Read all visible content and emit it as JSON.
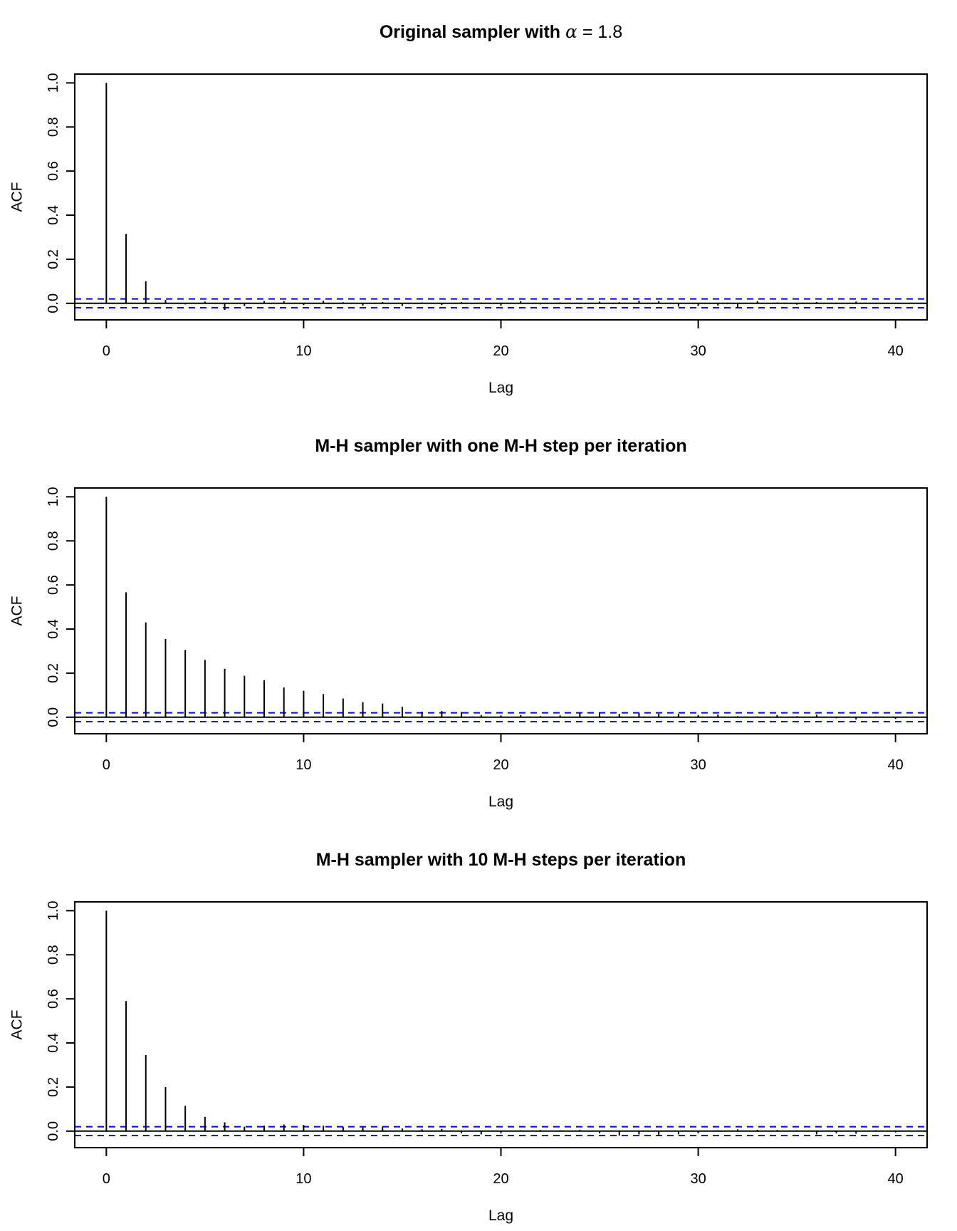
{
  "chart_data": [
    {
      "type": "bar",
      "title": {
        "bold": "Original sampler with ",
        "symbol": "α",
        "rest": " = 1.8"
      },
      "xlabel": "Lag",
      "ylabel": "ACF",
      "xlim": [
        -1.6,
        41.6
      ],
      "ylim": [
        -0.075,
        1.04
      ],
      "xticks": [
        0,
        10,
        20,
        30,
        40
      ],
      "yticks": [
        "0.0",
        "0.2",
        "0.4",
        "0.6",
        "0.8",
        "1.0"
      ],
      "ci": 0.02,
      "lags": [
        0,
        1,
        2,
        3,
        4,
        5,
        6,
        7,
        8,
        9,
        10,
        11,
        12,
        13,
        14,
        15,
        16,
        17,
        18,
        19,
        20,
        21,
        22,
        23,
        24,
        25,
        26,
        27,
        28,
        29,
        30,
        31,
        32,
        33,
        34,
        35,
        36,
        37,
        38,
        39,
        40
      ],
      "values": [
        1.0,
        0.315,
        0.1,
        0.015,
        -0.005,
        0.008,
        -0.03,
        -0.012,
        0.01,
        0.01,
        -0.008,
        0.012,
        0.005,
        -0.01,
        0.006,
        -0.012,
        0.004,
        -0.008,
        0.006,
        0.004,
        -0.01,
        0.01,
        -0.005,
        0.004,
        -0.004,
        0.008,
        0.005,
        0.012,
        0.01,
        -0.015,
        -0.012,
        -0.01,
        -0.018,
        0.01,
        0.004,
        -0.006,
        0.006,
        -0.004,
        0.008,
        -0.004,
        -0.003
      ]
    },
    {
      "type": "bar",
      "title": {
        "bold": "M-H sampler with one M-H step per iteration",
        "symbol": "",
        "rest": ""
      },
      "xlabel": "Lag",
      "ylabel": "ACF",
      "xlim": [
        -1.6,
        41.6
      ],
      "ylim": [
        -0.075,
        1.04
      ],
      "xticks": [
        0,
        10,
        20,
        30,
        40
      ],
      "yticks": [
        "0.0",
        "0.2",
        "0.4",
        "0.6",
        "0.8",
        "1.0"
      ],
      "ci": 0.02,
      "lags": [
        0,
        1,
        2,
        3,
        4,
        5,
        6,
        7,
        8,
        9,
        10,
        11,
        12,
        13,
        14,
        15,
        16,
        17,
        18,
        19,
        20,
        21,
        22,
        23,
        24,
        25,
        26,
        27,
        28,
        29,
        30,
        31,
        32,
        33,
        34,
        35,
        36,
        37,
        38,
        39,
        40
      ],
      "values": [
        1.0,
        0.567,
        0.43,
        0.355,
        0.305,
        0.26,
        0.22,
        0.188,
        0.168,
        0.135,
        0.12,
        0.105,
        0.085,
        0.068,
        0.062,
        0.048,
        0.025,
        0.028,
        0.024,
        0.01,
        0.008,
        0.01,
        0.005,
        0.008,
        0.02,
        0.018,
        0.015,
        0.018,
        0.016,
        0.015,
        0.01,
        0.012,
        0.005,
        0.004,
        0.01,
        0.005,
        0.012,
        -0.005,
        -0.01,
        0.004,
        -0.008
      ]
    },
    {
      "type": "bar",
      "title": {
        "bold": "M-H sampler with 10 M-H steps per iteration",
        "symbol": "",
        "rest": ""
      },
      "xlabel": "Lag",
      "ylabel": "ACF",
      "xlim": [
        -1.6,
        41.6
      ],
      "ylim": [
        -0.075,
        1.04
      ],
      "xticks": [
        0,
        10,
        20,
        30,
        40
      ],
      "yticks": [
        "0.0",
        "0.2",
        "0.4",
        "0.6",
        "0.8",
        "1.0"
      ],
      "ci": 0.02,
      "lags": [
        0,
        1,
        2,
        3,
        4,
        5,
        6,
        7,
        8,
        9,
        10,
        11,
        12,
        13,
        14,
        15,
        16,
        17,
        18,
        19,
        20,
        21,
        22,
        23,
        24,
        25,
        26,
        27,
        28,
        29,
        30,
        31,
        32,
        33,
        34,
        35,
        36,
        37,
        38,
        39,
        40
      ],
      "values": [
        1.0,
        0.59,
        0.345,
        0.2,
        0.115,
        0.065,
        0.04,
        0.02,
        0.025,
        0.03,
        0.028,
        0.025,
        0.02,
        0.018,
        0.02,
        0.012,
        0.008,
        0.01,
        -0.01,
        -0.015,
        -0.01,
        0.004,
        0.005,
        0.004,
        0.006,
        -0.01,
        -0.02,
        -0.015,
        -0.022,
        -0.015,
        -0.01,
        0.004,
        0.008,
        0.006,
        0.005,
        0.004,
        -0.015,
        -0.01,
        -0.012,
        0.004,
        -0.006
      ]
    }
  ],
  "colors": {
    "ci": "#0000ee",
    "stem": "#000000",
    "frame": "#000000"
  }
}
